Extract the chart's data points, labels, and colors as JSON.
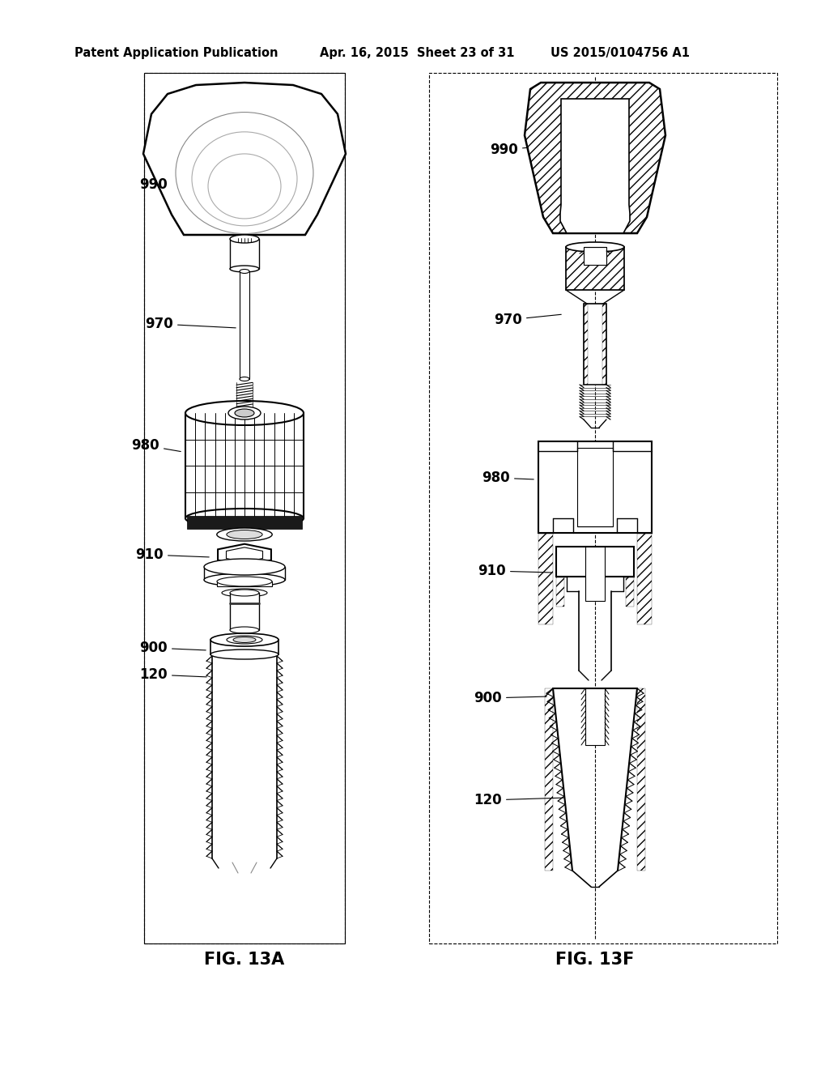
{
  "title_left": "Patent Application Publication",
  "title_center": "Apr. 16, 2015  Sheet 23 of 31",
  "title_right": "US 2015/0104756 A1",
  "fig_left_label": "FIG. 13A",
  "fig_right_label": "FIG. 13F",
  "bg_color": "#ffffff",
  "header_fontsize": 10.5,
  "fig_label_fontsize": 15,
  "label_fontsize": 12
}
